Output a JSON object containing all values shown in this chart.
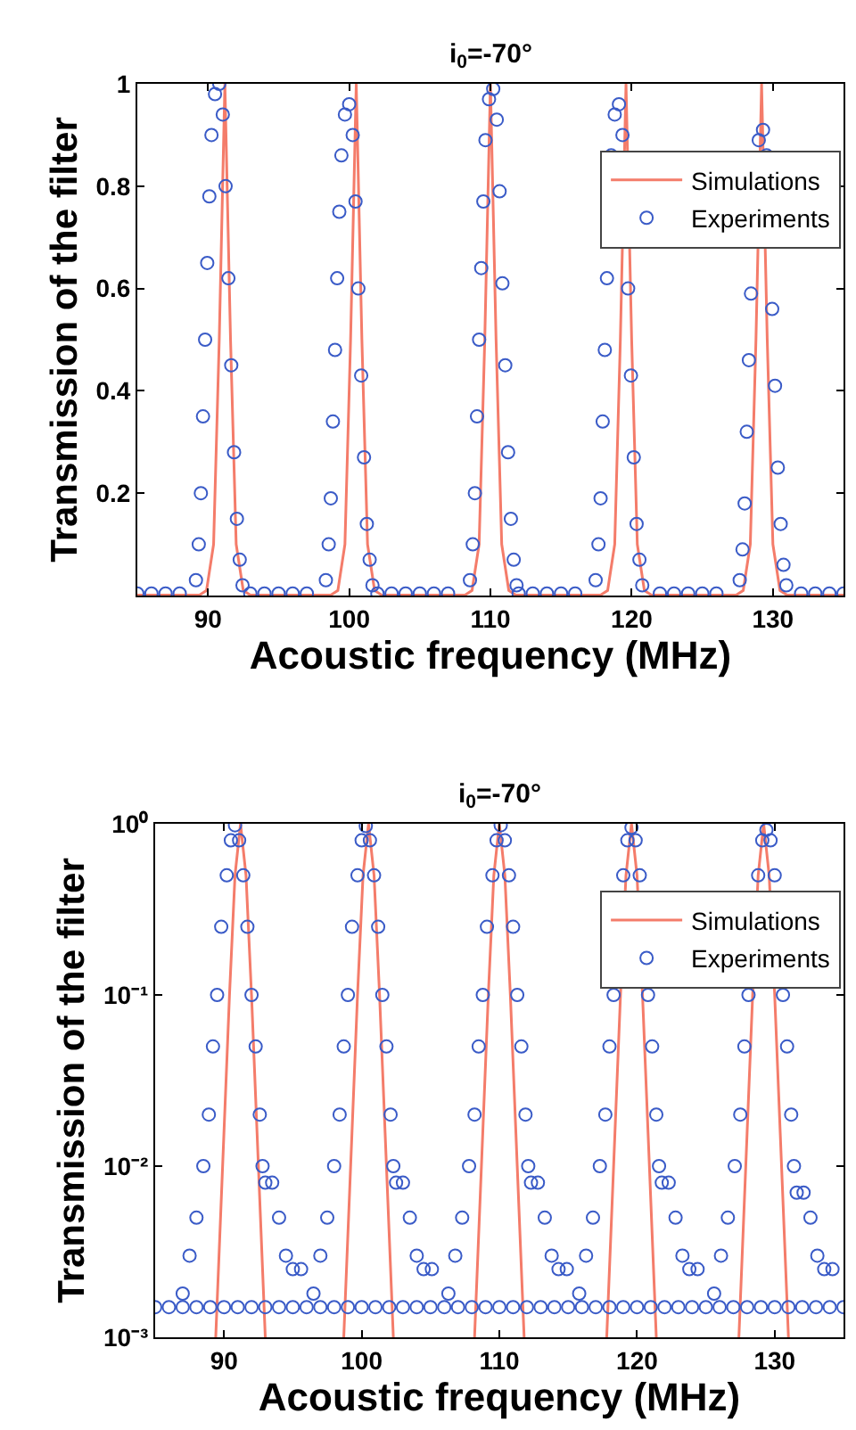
{
  "chart_data": [
    {
      "type": "line",
      "title": "i$_{0}$=-70°",
      "xlabel": "Acoustic frequency (MHz)",
      "ylabel": "Transmission of the filter",
      "xlim": [
        85,
        135
      ],
      "xticks": [
        90,
        100,
        110,
        120,
        130
      ],
      "ylim": [
        0,
        1
      ],
      "yticks": [
        0.2,
        0.4,
        0.6,
        0.8,
        1
      ],
      "legend": "top right",
      "series": [
        {
          "name": "Simulations",
          "color": "#f47c6a",
          "line_style": "solid",
          "marker": "none",
          "x": [
            85,
            89.4,
            89.9,
            90.4,
            90.8,
            91.2,
            91.6,
            92.0,
            92.5,
            93.0,
            98.7,
            99.2,
            99.7,
            100.1,
            100.5,
            100.9,
            101.3,
            101.8,
            102.3,
            108.2,
            108.7,
            109.2,
            109.6,
            110.0,
            110.4,
            110.8,
            111.3,
            111.8,
            117.8,
            118.3,
            118.8,
            119.2,
            119.6,
            120.0,
            120.4,
            120.9,
            121.4,
            127.4,
            127.9,
            128.4,
            128.8,
            129.2,
            129.6,
            130.0,
            130.5,
            131.0,
            135
          ],
          "values": [
            0.001,
            0.001,
            0.01,
            0.1,
            0.5,
            1,
            0.5,
            0.1,
            0.01,
            0.001,
            0.001,
            0.01,
            0.1,
            0.5,
            1,
            0.5,
            0.1,
            0.01,
            0.001,
            0.001,
            0.01,
            0.1,
            0.5,
            1,
            0.5,
            0.1,
            0.01,
            0.001,
            0.001,
            0.01,
            0.1,
            0.5,
            1,
            0.5,
            0.1,
            0.01,
            0.001,
            0.001,
            0.01,
            0.1,
            0.5,
            1,
            0.5,
            0.1,
            0.01,
            0.001,
            0.001
          ]
        },
        {
          "name": "Experiments",
          "type": "scatter",
          "color": "#3a5bc7",
          "marker": "circle",
          "x": [
            89.15,
            89.35,
            89.5,
            89.65,
            89.8,
            89.95,
            90.1,
            90.25,
            90.5,
            90.8,
            91.05,
            91.25,
            91.45,
            91.65,
            91.85,
            92.05,
            92.25,
            92.45,
            98.35,
            98.55,
            98.7,
            98.85,
            99.0,
            99.15,
            99.3,
            99.45,
            99.7,
            100.0,
            100.25,
            100.45,
            100.65,
            100.85,
            101.05,
            101.25,
            101.45,
            101.65,
            108.55,
            108.75,
            108.9,
            109.05,
            109.2,
            109.35,
            109.5,
            109.65,
            109.9,
            110.2,
            110.45,
            110.65,
            110.85,
            111.05,
            111.25,
            111.45,
            111.65,
            111.85,
            117.45,
            117.65,
            117.8,
            117.95,
            118.1,
            118.25,
            118.4,
            118.55,
            118.8,
            119.1,
            119.35,
            119.55,
            119.75,
            119.95,
            120.15,
            120.35,
            120.55,
            120.75,
            127.65,
            127.85,
            128.0,
            128.15,
            128.3,
            128.45,
            128.6,
            128.75,
            129.0,
            129.3,
            129.55,
            129.75,
            129.95,
            130.15,
            130.35,
            130.55,
            130.75,
            130.95,
            85,
            86,
            87,
            88,
            93,
            94,
            95,
            96,
            97,
            102,
            103,
            104,
            105,
            106,
            107,
            112,
            113,
            114,
            115,
            116,
            122,
            123,
            124,
            125,
            126,
            132,
            133,
            134,
            135
          ],
          "values": [
            0.03,
            0.1,
            0.2,
            0.35,
            0.5,
            0.65,
            0.78,
            0.9,
            0.98,
            1,
            0.94,
            0.8,
            0.62,
            0.45,
            0.28,
            0.15,
            0.07,
            0.02,
            0.03,
            0.1,
            0.19,
            0.34,
            0.48,
            0.62,
            0.75,
            0.86,
            0.94,
            0.96,
            0.9,
            0.77,
            0.6,
            0.43,
            0.27,
            0.14,
            0.07,
            0.02,
            0.03,
            0.1,
            0.2,
            0.35,
            0.5,
            0.64,
            0.77,
            0.89,
            0.97,
            0.99,
            0.93,
            0.79,
            0.61,
            0.45,
            0.28,
            0.15,
            0.07,
            0.02,
            0.03,
            0.1,
            0.19,
            0.34,
            0.48,
            0.62,
            null,
            0.86,
            0.94,
            0.96,
            0.9,
            null,
            0.6,
            0.43,
            0.27,
            0.14,
            0.07,
            0.02,
            0.03,
            0.09,
            0.18,
            0.32,
            0.46,
            0.59,
            null,
            null,
            0.89,
            0.91,
            0.86,
            null,
            0.56,
            0.41,
            0.25,
            0.14,
            0.06,
            0.02,
            0.004,
            0.004,
            0.004,
            0.004,
            0.004,
            0.004,
            0.004,
            0.004,
            0.004,
            0.004,
            0.004,
            0.004,
            0.004,
            0.004,
            0.004,
            0.004,
            0.004,
            0.004,
            0.004,
            0.004,
            0.004,
            0.004,
            0.004,
            0.004,
            0.004,
            0.004,
            0.004,
            0.004,
            0.004
          ]
        }
      ]
    },
    {
      "type": "line",
      "title": "i$_{0}$=-70°",
      "xlabel": "Acoustic frequency (MHz)",
      "ylabel": "Transmission of the filter",
      "log": true,
      "xlim": [
        85,
        135
      ],
      "xticks": [
        90,
        100,
        110,
        120,
        130
      ],
      "ylim": [
        0.001,
        1
      ],
      "yticks": [
        {
          "value": 0.001,
          "label": "10⁻³"
        },
        {
          "value": 0.01,
          "label": "10⁻²"
        },
        {
          "value": 0.1,
          "label": "10⁻¹"
        },
        {
          "value": 1,
          "label": "10⁰"
        }
      ],
      "legend": "top right",
      "series": [
        {
          "name": "Simulations",
          "color": "#f47c6a",
          "line_style": "solid",
          "marker": "none",
          "x": [
            89.4,
            89.9,
            90.4,
            90.8,
            91.2,
            91.6,
            92.0,
            92.5,
            93.0,
            95.8,
            98.7,
            99.2,
            99.7,
            100.1,
            100.5,
            100.9,
            101.3,
            101.8,
            102.3,
            105.2,
            108.2,
            108.7,
            109.2,
            109.6,
            110.0,
            110.4,
            110.8,
            111.3,
            111.8,
            114.8,
            117.8,
            118.3,
            118.8,
            119.2,
            119.6,
            120.0,
            120.4,
            120.9,
            121.4,
            124.4,
            127.4,
            127.9,
            128.4,
            128.8,
            129.2,
            129.6,
            130.0,
            130.5,
            131.0
          ],
          "values": [
            0.001,
            0.01,
            0.1,
            0.5,
            1,
            0.5,
            0.1,
            0.01,
            0.001,
            null,
            0.001,
            0.01,
            0.1,
            0.5,
            1,
            0.5,
            0.1,
            0.01,
            0.001,
            null,
            0.001,
            0.01,
            0.1,
            0.5,
            1,
            0.5,
            0.1,
            0.01,
            0.001,
            null,
            0.001,
            0.01,
            0.1,
            0.5,
            1,
            0.5,
            0.1,
            0.01,
            0.001,
            null,
            0.001,
            0.01,
            0.1,
            0.5,
            1,
            0.5,
            0.1,
            0.01,
            0.001
          ]
        },
        {
          "name": "Experiments",
          "type": "scatter",
          "color": "#3a5bc7",
          "marker": "circle",
          "x": [
            87.0,
            87.5,
            88.0,
            88.5,
            88.9,
            89.2,
            89.5,
            89.8,
            90.2,
            90.5,
            90.8,
            91.1,
            91.4,
            91.7,
            92.0,
            92.3,
            92.6,
            92.8,
            93.0,
            93.5,
            94.0,
            94.5,
            95.0,
            95.6,
            96.5,
            97.0,
            97.5,
            98.0,
            98.4,
            98.7,
            99.0,
            99.3,
            99.7,
            100.0,
            100.3,
            100.6,
            100.9,
            101.2,
            101.5,
            101.8,
            102.1,
            102.3,
            102.5,
            103.0,
            103.5,
            104.0,
            104.5,
            105.1,
            106.3,
            106.8,
            107.3,
            107.8,
            108.2,
            108.5,
            108.8,
            109.1,
            109.5,
            109.8,
            110.1,
            110.4,
            110.7,
            111.0,
            111.3,
            111.6,
            111.9,
            112.1,
            112.3,
            112.8,
            113.3,
            113.8,
            114.3,
            114.9,
            115.8,
            116.3,
            116.8,
            117.3,
            117.7,
            118.0,
            118.3,
            118.6,
            119.0,
            119.3,
            119.6,
            119.9,
            120.2,
            120.5,
            120.8,
            121.1,
            121.4,
            121.6,
            121.8,
            122.3,
            122.8,
            123.3,
            123.8,
            124.4,
            125.6,
            126.1,
            126.6,
            127.1,
            127.5,
            127.8,
            128.1,
            128.4,
            128.8,
            129.1,
            129.4,
            129.7,
            130.0,
            130.3,
            130.6,
            130.9,
            131.2,
            131.4,
            131.6,
            132.1,
            132.6,
            133.1,
            133.6,
            134.2,
            85,
            86,
            87,
            88,
            89,
            90,
            91,
            92,
            93,
            94,
            95,
            96,
            97,
            98,
            99,
            100,
            101,
            102,
            103,
            104,
            105,
            106,
            107,
            108,
            109,
            110,
            111,
            112,
            113,
            114,
            115,
            116,
            117,
            118,
            119,
            120,
            121,
            122,
            123,
            124,
            125,
            126,
            127,
            128,
            129,
            130,
            131,
            132,
            133,
            134,
            135
          ],
          "values": [
            0.0018,
            0.003,
            0.005,
            0.01,
            0.02,
            0.05,
            0.1,
            0.25,
            0.5,
            0.8,
            0.98,
            0.8,
            0.5,
            0.25,
            0.1,
            0.05,
            0.02,
            0.01,
            0.008,
            0.008,
            0.005,
            0.003,
            0.0025,
            0.0025,
            0.0018,
            0.003,
            0.005,
            0.01,
            0.02,
            0.05,
            0.1,
            0.25,
            0.5,
            0.8,
            0.97,
            0.8,
            0.5,
            0.25,
            0.1,
            0.05,
            0.02,
            0.01,
            0.008,
            0.008,
            0.005,
            0.003,
            0.0025,
            0.0025,
            0.0018,
            0.003,
            0.005,
            0.01,
            0.02,
            0.05,
            0.1,
            0.25,
            0.5,
            0.8,
            0.98,
            0.8,
            0.5,
            0.25,
            0.1,
            0.05,
            0.02,
            0.01,
            0.008,
            0.008,
            0.005,
            0.003,
            0.0025,
            0.0025,
            0.0018,
            0.003,
            0.005,
            0.01,
            0.02,
            0.05,
            0.1,
            null,
            0.5,
            0.8,
            0.95,
            0.8,
            0.5,
            null,
            0.1,
            0.05,
            0.02,
            0.01,
            0.008,
            0.008,
            0.005,
            0.003,
            0.0025,
            0.0025,
            0.0018,
            0.003,
            0.005,
            0.01,
            0.02,
            0.05,
            0.1,
            null,
            0.5,
            0.8,
            0.92,
            0.8,
            0.5,
            null,
            0.1,
            0.05,
            0.02,
            0.01,
            0.007,
            0.007,
            0.005,
            0.003,
            0.0025,
            0.0025,
            0.0015,
            0.0015,
            0.0015,
            0.0015,
            0.0015,
            0.0015,
            0.0015,
            0.0015,
            0.0015,
            0.0015,
            0.0015,
            0.0015,
            0.0015,
            0.0015,
            0.0015,
            0.0015,
            0.0015,
            0.0015,
            0.0015,
            0.0015,
            0.0015,
            0.0015,
            0.0015,
            0.0015,
            0.0015,
            0.0015,
            0.0015,
            0.0015,
            0.0015,
            0.0015,
            0.0015,
            0.0015,
            0.0015,
            0.0015,
            0.0015,
            0.0015,
            0.0015,
            0.0015,
            0.0015,
            0.0015,
            0.0015,
            0.0015,
            0.0015,
            0.0015,
            0.0015,
            0.0015,
            0.0015,
            0.0015,
            0.0015,
            0.0015,
            0.0015
          ]
        }
      ]
    }
  ]
}
